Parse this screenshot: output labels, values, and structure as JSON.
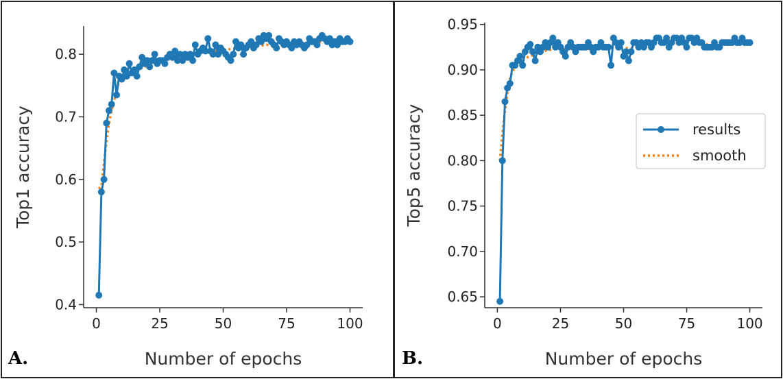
{
  "panels": [
    {
      "label": "A."
    },
    {
      "label": "B."
    }
  ],
  "colors": {
    "results": "#1f77b4",
    "smooth": "#ff7f0e",
    "axis": "#333333",
    "border": "#222222"
  },
  "chart_data": [
    {
      "type": "line",
      "xlabel": "Number of epochs",
      "ylabel": "Top1 accuracy",
      "xlim": [
        -5,
        105
      ],
      "ylim": [
        0.395,
        0.845
      ],
      "xticks": [
        "0",
        "25",
        "50",
        "75",
        "100"
      ],
      "yticks": [
        "0.4",
        "0.5",
        "0.6",
        "0.7",
        "0.8"
      ],
      "legend": false,
      "grid": false,
      "x": [
        1,
        2,
        3,
        4,
        5,
        6,
        7,
        8,
        9,
        10,
        11,
        12,
        13,
        14,
        15,
        16,
        17,
        18,
        19,
        20,
        21,
        22,
        23,
        24,
        25,
        26,
        27,
        28,
        29,
        30,
        31,
        32,
        33,
        34,
        35,
        36,
        37,
        38,
        39,
        40,
        41,
        42,
        43,
        44,
        45,
        46,
        47,
        48,
        49,
        50,
        51,
        52,
        53,
        54,
        55,
        56,
        57,
        58,
        59,
        60,
        61,
        62,
        63,
        64,
        65,
        66,
        67,
        68,
        69,
        70,
        71,
        72,
        73,
        74,
        75,
        76,
        77,
        78,
        79,
        80,
        81,
        82,
        83,
        84,
        85,
        86,
        87,
        88,
        89,
        90,
        91,
        92,
        93,
        94,
        95,
        96,
        97,
        98,
        99,
        100
      ],
      "series": [
        {
          "name": "results",
          "style": "line-marker",
          "values": [
            0.415,
            0.58,
            0.6,
            0.69,
            0.71,
            0.72,
            0.77,
            0.735,
            0.765,
            0.76,
            0.775,
            0.765,
            0.785,
            0.77,
            0.775,
            0.765,
            0.78,
            0.795,
            0.785,
            0.79,
            0.78,
            0.79,
            0.8,
            0.785,
            0.79,
            0.79,
            0.785,
            0.795,
            0.8,
            0.795,
            0.805,
            0.79,
            0.8,
            0.79,
            0.8,
            0.795,
            0.8,
            0.79,
            0.815,
            0.8,
            0.805,
            0.81,
            0.805,
            0.825,
            0.805,
            0.8,
            0.815,
            0.8,
            0.81,
            0.805,
            0.8,
            0.795,
            0.79,
            0.8,
            0.82,
            0.81,
            0.815,
            0.8,
            0.81,
            0.815,
            0.82,
            0.81,
            0.815,
            0.825,
            0.82,
            0.83,
            0.825,
            0.83,
            0.82,
            0.815,
            0.81,
            0.825,
            0.82,
            0.815,
            0.82,
            0.815,
            0.81,
            0.82,
            0.815,
            0.82,
            0.815,
            0.81,
            0.815,
            0.825,
            0.82,
            0.82,
            0.815,
            0.825,
            0.83,
            0.825,
            0.82,
            0.825,
            0.815,
            0.82,
            0.815,
            0.825,
            0.82,
            0.82,
            0.825,
            0.82
          ]
        },
        {
          "name": "smooth",
          "style": "dotted",
          "values": [
            0.585,
            0.59,
            0.625,
            0.66,
            0.69,
            0.71,
            0.725,
            0.745,
            0.755,
            0.758,
            0.762,
            0.765,
            0.768,
            0.77,
            0.772,
            0.774,
            0.776,
            0.778,
            0.78,
            0.782,
            0.783,
            0.784,
            0.786,
            0.787,
            0.788,
            0.789,
            0.79,
            0.791,
            0.792,
            0.793,
            0.794,
            0.795,
            0.796,
            0.797,
            0.797,
            0.798,
            0.799,
            0.8,
            0.8,
            0.801,
            0.802,
            0.802,
            0.803,
            0.804,
            0.804,
            0.805,
            0.805,
            0.806,
            0.806,
            0.807,
            0.807,
            0.808,
            0.808,
            0.809,
            0.809,
            0.81,
            0.81,
            0.81,
            0.811,
            0.811,
            0.812,
            0.812,
            0.813,
            0.813,
            0.814,
            0.814,
            0.815,
            0.815,
            0.815,
            0.815,
            0.815,
            0.816,
            0.816,
            0.816,
            0.816,
            0.816,
            0.816,
            0.816,
            0.816,
            0.817,
            0.817,
            0.817,
            0.817,
            0.818,
            0.818,
            0.818,
            0.819,
            0.819,
            0.82,
            0.82,
            0.82,
            0.82,
            0.82,
            0.82,
            0.82,
            0.821,
            0.821,
            0.821,
            0.822,
            0.822
          ]
        }
      ]
    },
    {
      "type": "line",
      "xlabel": "Number of epochs",
      "ylabel": "Top5 accuracy",
      "xlim": [
        -5,
        105
      ],
      "ylim": [
        0.638,
        0.952
      ],
      "xticks": [
        "0",
        "25",
        "50",
        "75",
        "100"
      ],
      "yticks": [
        "0.65",
        "0.70",
        "0.75",
        "0.80",
        "0.85",
        "0.90",
        "0.95"
      ],
      "legend": true,
      "legend_position": "center-right",
      "grid": false,
      "x": [
        1,
        2,
        3,
        4,
        5,
        6,
        7,
        8,
        9,
        10,
        11,
        12,
        13,
        14,
        15,
        16,
        17,
        18,
        19,
        20,
        21,
        22,
        23,
        24,
        25,
        26,
        27,
        28,
        29,
        30,
        31,
        32,
        33,
        34,
        35,
        36,
        37,
        38,
        39,
        40,
        41,
        42,
        43,
        44,
        45,
        46,
        47,
        48,
        49,
        50,
        51,
        52,
        53,
        54,
        55,
        56,
        57,
        58,
        59,
        60,
        61,
        62,
        63,
        64,
        65,
        66,
        67,
        68,
        69,
        70,
        71,
        72,
        73,
        74,
        75,
        76,
        77,
        78,
        79,
        80,
        81,
        82,
        83,
        84,
        85,
        86,
        87,
        88,
        89,
        90,
        91,
        92,
        93,
        94,
        95,
        96,
        97,
        98,
        99,
        100
      ],
      "series": [
        {
          "name": "results",
          "style": "line-marker",
          "values": [
            0.645,
            0.8,
            0.865,
            0.88,
            0.885,
            0.905,
            0.905,
            0.91,
            0.915,
            0.905,
            0.92,
            0.925,
            0.928,
            0.92,
            0.91,
            0.925,
            0.92,
            0.925,
            0.93,
            0.925,
            0.93,
            0.935,
            0.925,
            0.93,
            0.925,
            0.92,
            0.915,
            0.925,
            0.93,
            0.925,
            0.92,
            0.925,
            0.925,
            0.925,
            0.925,
            0.93,
            0.925,
            0.92,
            0.925,
            0.925,
            0.93,
            0.925,
            0.925,
            0.925,
            0.905,
            0.935,
            0.93,
            0.925,
            0.93,
            0.915,
            0.92,
            0.91,
            0.92,
            0.93,
            0.93,
            0.925,
            0.93,
            0.925,
            0.93,
            0.93,
            0.925,
            0.93,
            0.935,
            0.935,
            0.93,
            0.93,
            0.935,
            0.925,
            0.93,
            0.935,
            0.935,
            0.93,
            0.935,
            0.93,
            0.925,
            0.935,
            0.935,
            0.93,
            0.935,
            0.93,
            0.93,
            0.925,
            0.925,
            0.925,
            0.925,
            0.93,
            0.925,
            0.925,
            0.93,
            0.93,
            0.93,
            0.93,
            0.93,
            0.935,
            0.93,
            0.93,
            0.935,
            0.93,
            0.93,
            0.93
          ]
        },
        {
          "name": "smooth",
          "style": "dotted",
          "values": [
            0.8,
            0.83,
            0.855,
            0.875,
            0.89,
            0.898,
            0.903,
            0.906,
            0.908,
            0.91,
            0.912,
            0.914,
            0.915,
            0.916,
            0.917,
            0.918,
            0.919,
            0.92,
            0.921,
            0.922,
            0.922,
            0.923,
            0.923,
            0.923,
            0.923,
            0.923,
            0.923,
            0.923,
            0.923,
            0.923,
            0.923,
            0.923,
            0.923,
            0.923,
            0.923,
            0.923,
            0.923,
            0.924,
            0.924,
            0.924,
            0.924,
            0.924,
            0.924,
            0.924,
            0.924,
            0.924,
            0.924,
            0.924,
            0.924,
            0.924,
            0.924,
            0.924,
            0.924,
            0.924,
            0.925,
            0.925,
            0.926,
            0.926,
            0.927,
            0.927,
            0.928,
            0.928,
            0.929,
            0.929,
            0.93,
            0.93,
            0.93,
            0.93,
            0.931,
            0.931,
            0.931,
            0.931,
            0.931,
            0.931,
            0.931,
            0.931,
            0.931,
            0.931,
            0.931,
            0.931,
            0.93,
            0.929,
            0.928,
            0.928,
            0.927,
            0.927,
            0.927,
            0.928,
            0.928,
            0.929,
            0.929,
            0.929,
            0.93,
            0.93,
            0.93,
            0.93,
            0.93,
            0.93,
            0.93,
            0.93
          ]
        }
      ]
    }
  ]
}
